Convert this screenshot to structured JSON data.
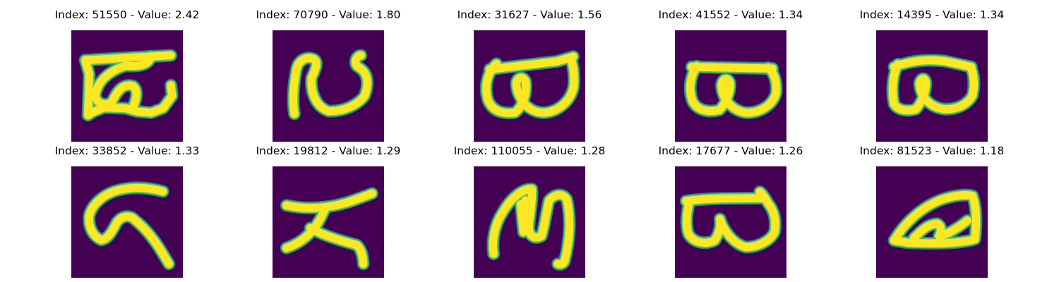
{
  "colors": {
    "background": "#440154",
    "stroke_edge": "#21918c",
    "stroke_mid": "#5ec962",
    "stroke_core": "#fde725"
  },
  "panels": [
    {
      "index": "51550",
      "value": "2.42",
      "glyph": "character-bha",
      "title": "Index: 51550 - Value: 2.42"
    },
    {
      "index": "70790",
      "value": "1.80",
      "glyph": "character-open-loop",
      "title": "Index: 70790 - Value: 1.80"
    },
    {
      "index": "31627",
      "value": "1.56",
      "glyph": "character-double-loop",
      "title": "Index: 31627 - Value: 1.56"
    },
    {
      "index": "41552",
      "value": "1.34",
      "glyph": "character-double-loop",
      "title": "Index: 41552 - Value: 1.34"
    },
    {
      "index": "14395",
      "value": "1.34",
      "glyph": "character-double-loop",
      "title": "Index: 14395 - Value: 1.34"
    },
    {
      "index": "33852",
      "value": "1.33",
      "glyph": "character-hook",
      "title": "Index: 33852 - Value: 1.33"
    },
    {
      "index": "19812",
      "value": "1.29",
      "glyph": "character-cross",
      "title": "Index: 19812 - Value: 1.29"
    },
    {
      "index": "110055",
      "value": "1.28",
      "glyph": "character-arch",
      "title": "Index: 110055 - Value: 1.28"
    },
    {
      "index": "17677",
      "value": "1.26",
      "glyph": "character-double-loop",
      "title": "Index: 17677 - Value: 1.26"
    },
    {
      "index": "81523",
      "value": "1.18",
      "glyph": "character-slanted-loop",
      "title": "Index: 81523 - Value: 1.18"
    }
  ]
}
